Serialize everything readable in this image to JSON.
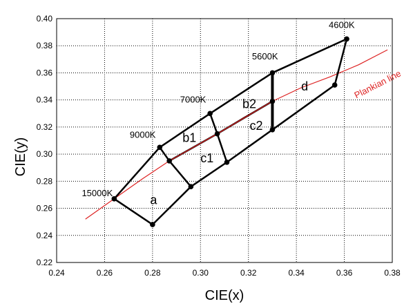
{
  "chart_data": {
    "type": "line",
    "xlabel": "CIE(x)",
    "ylabel": "CIE(y)",
    "xlim": [
      0.24,
      0.38
    ],
    "ylim": [
      0.22,
      0.4
    ],
    "xticks": [
      "0.24",
      "0.26",
      "0.28",
      "0.30",
      "0.32",
      "0.34",
      "0.36",
      "0.38"
    ],
    "yticks": [
      "0.22",
      "0.24",
      "0.26",
      "0.28",
      "0.30",
      "0.32",
      "0.34",
      "0.36",
      "0.38",
      "0.40"
    ],
    "grid": true,
    "colors": {
      "grid": "#000000",
      "polygon": "#000000",
      "planck": "#dd2222",
      "point": "#000000"
    },
    "points": [
      {
        "id": "P15000",
        "x": 0.264,
        "y": 0.267
      },
      {
        "id": "P9000",
        "x": 0.283,
        "y": 0.305
      },
      {
        "id": "P7000",
        "x": 0.304,
        "y": 0.33
      },
      {
        "id": "P5600",
        "x": 0.33,
        "y": 0.36
      },
      {
        "id": "P4600",
        "x": 0.361,
        "y": 0.385
      },
      {
        "id": "Pbot",
        "x": 0.28,
        "y": 0.248
      },
      {
        "id": "Pc1lo",
        "x": 0.296,
        "y": 0.276
      },
      {
        "id": "Pc2lo",
        "x": 0.311,
        "y": 0.294
      },
      {
        "id": "Pd_lo",
        "x": 0.33,
        "y": 0.318
      },
      {
        "id": "Pright",
        "x": 0.356,
        "y": 0.351
      },
      {
        "id": "Pb1",
        "x": 0.287,
        "y": 0.295
      },
      {
        "id": "Pmid",
        "x": 0.307,
        "y": 0.315
      },
      {
        "id": "Pd_mid",
        "x": 0.33,
        "y": 0.339
      }
    ],
    "segments": [
      [
        "P15000",
        "P9000",
        2.5
      ],
      [
        "P9000",
        "P7000",
        2.5
      ],
      [
        "P7000",
        "P5600",
        2.5
      ],
      [
        "P5600",
        "P4600",
        2.5
      ],
      [
        "P4600",
        "Pright",
        2.5
      ],
      [
        "Pright",
        "Pd_lo",
        2.5
      ],
      [
        "Pd_lo",
        "Pc2lo",
        2.5
      ],
      [
        "Pc2lo",
        "Pc1lo",
        2.5
      ],
      [
        "Pc1lo",
        "Pbot",
        2.5
      ],
      [
        "Pbot",
        "P15000",
        2.5
      ],
      [
        "P9000",
        "Pb1",
        2.5
      ],
      [
        "Pb1",
        "Pc1lo",
        2.5
      ],
      [
        "P7000",
        "Pmid",
        2.5
      ],
      [
        "Pmid",
        "Pc2lo",
        2.5
      ],
      [
        "P5600",
        "Pd_mid",
        4
      ],
      [
        "Pd_mid",
        "Pd_lo",
        4
      ],
      [
        "Pb1",
        "Pmid",
        2.5
      ],
      [
        "Pmid",
        "Pd_mid",
        2.5
      ]
    ],
    "planckian_line": {
      "name": "Plankian line",
      "x": [
        0.252,
        0.264,
        0.276,
        0.287,
        0.298,
        0.307,
        0.318,
        0.33,
        0.342,
        0.354,
        0.366,
        0.378
      ],
      "y": [
        0.252,
        0.267,
        0.282,
        0.295,
        0.306,
        0.315,
        0.327,
        0.339,
        0.349,
        0.357,
        0.366,
        0.377
      ]
    },
    "point_labels": [
      {
        "text": "15000K",
        "x": 0.2505,
        "y": 0.269
      },
      {
        "text": "9000K",
        "x": 0.2705,
        "y": 0.312
      },
      {
        "text": "7000K",
        "x": 0.2915,
        "y": 0.338
      },
      {
        "text": "5600K",
        "x": 0.3215,
        "y": 0.37
      },
      {
        "text": "4600K",
        "x": 0.3535,
        "y": 0.393
      }
    ],
    "region_labels": [
      {
        "text": "a",
        "x": 0.279,
        "y": 0.263
      },
      {
        "text": "b1",
        "x": 0.2925,
        "y": 0.309
      },
      {
        "text": "c1",
        "x": 0.3,
        "y": 0.294
      },
      {
        "text": "b2",
        "x": 0.3175,
        "y": 0.334
      },
      {
        "text": "c2",
        "x": 0.3205,
        "y": 0.318
      },
      {
        "text": "d",
        "x": 0.342,
        "y": 0.347
      }
    ],
    "curve_label": {
      "text": "Plankian line",
      "x": 0.365,
      "y": 0.341,
      "angle": -27
    }
  }
}
